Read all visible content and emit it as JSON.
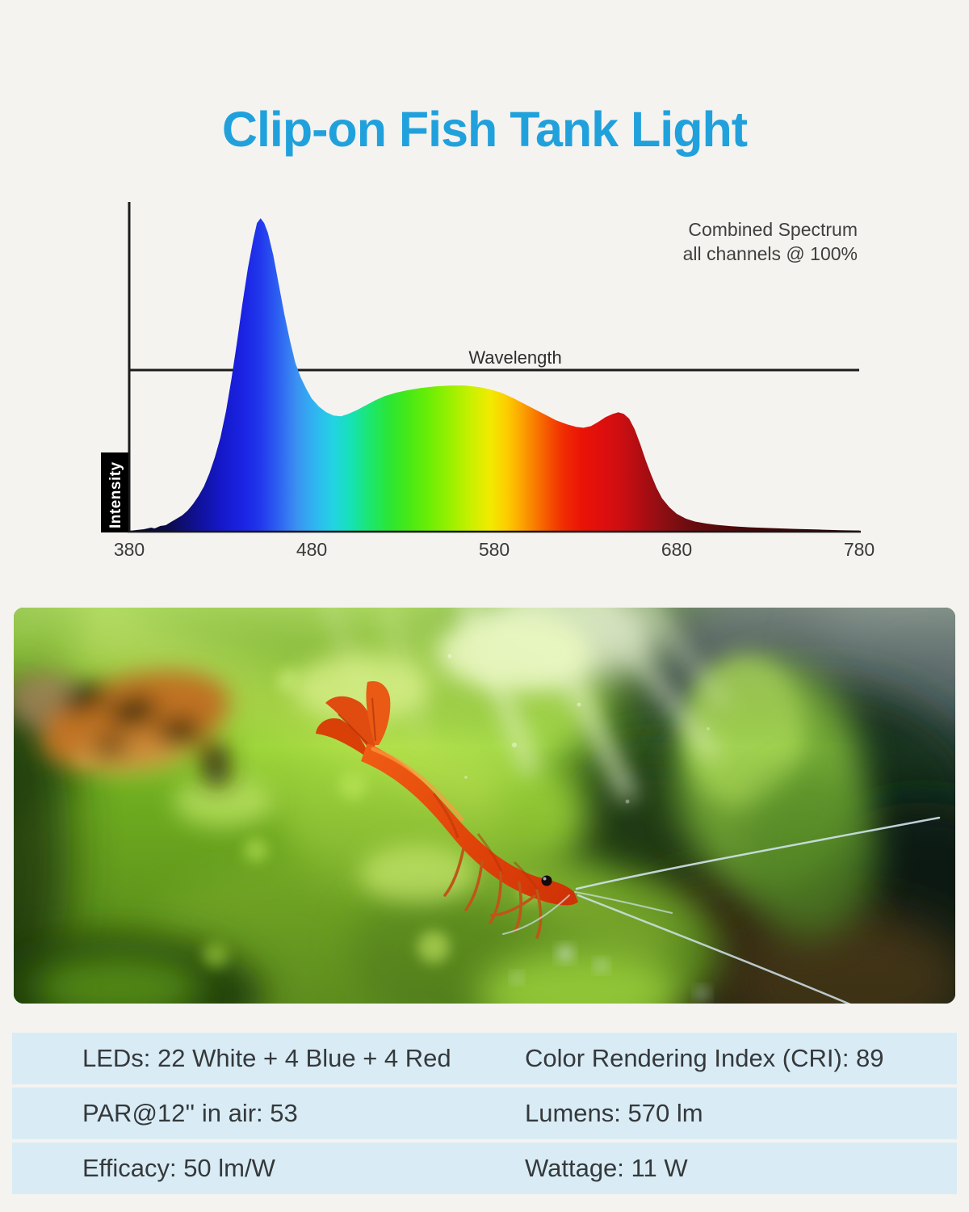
{
  "page": {
    "background": "#f4f3f0"
  },
  "title": {
    "text": "Clip-on Fish Tank Light",
    "color": "#21a1dc"
  },
  "chart": {
    "annotation": {
      "line1": "Combined Spectrum",
      "line2": "all channels @ 100%"
    },
    "x_axis_label": "Wavelength",
    "y_axis_label": "Intensity"
  },
  "chart_data": {
    "type": "area",
    "title": "Combined Spectrum",
    "subtitle": "all channels @ 100%",
    "xlabel": "Wavelength",
    "ylabel": "Intensity",
    "x_unit": "nm",
    "xlim": [
      380,
      780
    ],
    "x_ticks_nm": [
      380,
      480,
      580,
      680,
      780
    ],
    "grid": false,
    "legend": "none",
    "reference_line": {
      "label": "Wavelength",
      "intensity": 100
    },
    "series": [
      {
        "name": "combined-spectrum-all-channels-100pct",
        "points": [
          [
            380,
            0.5
          ],
          [
            384,
            1
          ],
          [
            388,
            1.5
          ],
          [
            392,
            2.5
          ],
          [
            394,
            2
          ],
          [
            397,
            3.5
          ],
          [
            400,
            4
          ],
          [
            403,
            6
          ],
          [
            406,
            8
          ],
          [
            409,
            10
          ],
          [
            412,
            13
          ],
          [
            415,
            17
          ],
          [
            418,
            22
          ],
          [
            421,
            28
          ],
          [
            424,
            36
          ],
          [
            427,
            46
          ],
          [
            430,
            58
          ],
          [
            433,
            74
          ],
          [
            436,
            94
          ],
          [
            439,
            116
          ],
          [
            442,
            140
          ],
          [
            445,
            162
          ],
          [
            448,
            180
          ],
          [
            450,
            190
          ],
          [
            452,
            193
          ],
          [
            454,
            190
          ],
          [
            456,
            184
          ],
          [
            459,
            170
          ],
          [
            462,
            152
          ],
          [
            465,
            134
          ],
          [
            468,
            118
          ],
          [
            471,
            104
          ],
          [
            474,
            95
          ],
          [
            477,
            88
          ],
          [
            480,
            82
          ],
          [
            484,
            77
          ],
          [
            488,
            73.5
          ],
          [
            492,
            71.5
          ],
          [
            496,
            71
          ],
          [
            500,
            72.5
          ],
          [
            505,
            75
          ],
          [
            510,
            78
          ],
          [
            515,
            81
          ],
          [
            520,
            83.5
          ],
          [
            526,
            85.5
          ],
          [
            532,
            87
          ],
          [
            540,
            88.5
          ],
          [
            548,
            89.5
          ],
          [
            556,
            90
          ],
          [
            564,
            90
          ],
          [
            572,
            89
          ],
          [
            578,
            87.5
          ],
          [
            584,
            85.5
          ],
          [
            590,
            82.5
          ],
          [
            596,
            79
          ],
          [
            602,
            75.5
          ],
          [
            608,
            72
          ],
          [
            614,
            68.5
          ],
          [
            620,
            66
          ],
          [
            625,
            64.5
          ],
          [
            629,
            64
          ],
          [
            633,
            65
          ],
          [
            637,
            67.5
          ],
          [
            641,
            70.5
          ],
          [
            645,
            72.5
          ],
          [
            648,
            73.5
          ],
          [
            651,
            72.5
          ],
          [
            654,
            69.5
          ],
          [
            657,
            63
          ],
          [
            660,
            54
          ],
          [
            663,
            44
          ],
          [
            666,
            35
          ],
          [
            669,
            27
          ],
          [
            672,
            20.5
          ],
          [
            676,
            15
          ],
          [
            680,
            11
          ],
          [
            685,
            8
          ],
          [
            690,
            6.2
          ],
          [
            696,
            5
          ],
          [
            702,
            4.2
          ],
          [
            710,
            3.4
          ],
          [
            720,
            2.7
          ],
          [
            732,
            2.2
          ],
          [
            745,
            1.7
          ],
          [
            758,
            1.3
          ],
          [
            770,
            0.9
          ],
          [
            780,
            0.7
          ]
        ]
      }
    ],
    "gradient_stops": [
      [
        380,
        "#08071f"
      ],
      [
        400,
        "#0b0b46"
      ],
      [
        415,
        "#10108c"
      ],
      [
        430,
        "#1418c8"
      ],
      [
        443,
        "#1b24e4"
      ],
      [
        452,
        "#2138ec"
      ],
      [
        462,
        "#2e62f2"
      ],
      [
        472,
        "#3b92f2"
      ],
      [
        482,
        "#2fb6f0"
      ],
      [
        492,
        "#22d3e2"
      ],
      [
        502,
        "#16e2b2"
      ],
      [
        512,
        "#1ce66e"
      ],
      [
        522,
        "#2ae636"
      ],
      [
        532,
        "#44e818"
      ],
      [
        545,
        "#6eee04"
      ],
      [
        558,
        "#a2f000"
      ],
      [
        568,
        "#ccf000"
      ],
      [
        578,
        "#f2ea00"
      ],
      [
        586,
        "#fcd000"
      ],
      [
        594,
        "#fcaa00"
      ],
      [
        602,
        "#f97e00"
      ],
      [
        610,
        "#f55200"
      ],
      [
        618,
        "#f02c02"
      ],
      [
        628,
        "#ea1306"
      ],
      [
        640,
        "#de0e0e"
      ],
      [
        650,
        "#cb0e12"
      ],
      [
        660,
        "#b00d12"
      ],
      [
        672,
        "#8e0e13"
      ],
      [
        685,
        "#6f0d10"
      ],
      [
        705,
        "#54090b"
      ],
      [
        730,
        "#3e0608"
      ],
      [
        755,
        "#300506"
      ],
      [
        780,
        "#270405"
      ]
    ]
  },
  "photo": {
    "description": "Macro aquarium photo: bright red cherry shrimp perched on vivid green moss, long pale antennae extending right; blurred orange-and-black fish upper left; out-of-focus green plants and dark driftwood on the right"
  },
  "specs": {
    "rows": [
      {
        "left": "LEDs: 22 White + 4 Blue + 4 Red",
        "right": "Color Rendering Index (CRI): 89"
      },
      {
        "left": "PAR@12'' in air: 53",
        "right": "Lumens: 570 lm"
      },
      {
        "left": "Efficacy: 50 lm/W",
        "right": "Wattage: 11 W"
      }
    ]
  }
}
